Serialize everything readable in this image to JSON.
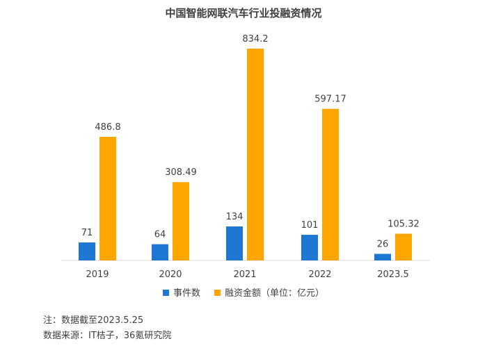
{
  "chart_data": {
    "type": "bar",
    "title": "中国智能网联汽车行业投融资情况",
    "categories": [
      "2019",
      "2020",
      "2021",
      "2022",
      "2023.5"
    ],
    "series": [
      {
        "name": "事件数",
        "color": "#1F77D4",
        "values": [
          71,
          64,
          134,
          101,
          26
        ],
        "labels": [
          "71",
          "64",
          "134",
          "101",
          "26"
        ]
      },
      {
        "name": "融资金额（单位：亿元）",
        "color": "#FFA500",
        "values": [
          486.8,
          308.49,
          834.2,
          597.17,
          105.32
        ],
        "labels": [
          "486.8",
          "308.49",
          "834.2",
          "597.17",
          "105.32"
        ]
      }
    ],
    "xlabel": "",
    "ylabel": "",
    "ylim": [
      0,
      834.2
    ],
    "grid": false,
    "legend": "bottom"
  },
  "notes": {
    "note1": "注：数据截至2023.5.25",
    "note2": "数据来源：IT桔子，36氪研究院"
  }
}
